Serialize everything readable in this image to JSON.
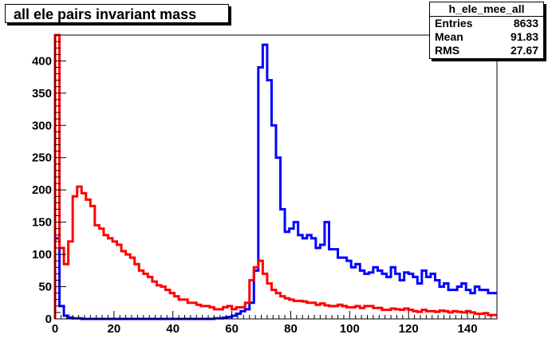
{
  "title": "all ele pairs invariant mass",
  "stats": {
    "name": "h_ele_mee_all",
    "rows": [
      {
        "label": "Entries",
        "value": "8633"
      },
      {
        "label": "Mean",
        "value": "91.83"
      },
      {
        "label": "RMS",
        "value": "27.67"
      }
    ]
  },
  "chart_data": {
    "type": "line",
    "title": "all ele pairs invariant mass",
    "xlabel": "",
    "ylabel": "",
    "xlim": [
      0,
      150
    ],
    "ylim": [
      0,
      440
    ],
    "xticks": [
      0,
      20,
      40,
      60,
      80,
      100,
      120,
      140
    ],
    "yticks": [
      0,
      50,
      100,
      150,
      200,
      250,
      300,
      350,
      400
    ],
    "grid": false,
    "bin_width": 1.5,
    "series": [
      {
        "color": "#0000ff",
        "values": [
          125,
          20,
          5,
          2,
          1,
          1,
          0,
          0,
          0,
          0,
          0,
          0,
          0,
          0,
          0,
          0,
          0,
          0,
          0,
          0,
          0,
          0,
          0,
          0,
          0,
          0,
          0,
          0,
          0,
          0,
          0,
          0,
          0,
          0,
          0,
          0,
          1,
          1,
          2,
          3,
          5,
          8,
          12,
          15,
          25,
          75,
          390,
          425,
          370,
          300,
          250,
          170,
          135,
          140,
          150,
          130,
          125,
          130,
          125,
          110,
          115,
          150,
          108,
          108,
          95,
          95,
          90,
          80,
          85,
          75,
          70,
          72,
          80,
          75,
          70,
          65,
          80,
          70,
          60,
          72,
          70,
          65,
          55,
          75,
          65,
          70,
          60,
          50,
          55,
          45,
          45,
          50,
          55,
          45,
          40,
          50,
          45,
          45,
          40,
          40
        ]
      },
      {
        "color": "#ff0000",
        "values": [
          440,
          110,
          85,
          120,
          190,
          205,
          195,
          185,
          175,
          145,
          140,
          130,
          125,
          120,
          115,
          105,
          100,
          95,
          85,
          75,
          70,
          65,
          58,
          52,
          50,
          45,
          40,
          35,
          30,
          30,
          25,
          25,
          22,
          20,
          20,
          18,
          15,
          15,
          18,
          20,
          15,
          18,
          18,
          25,
          60,
          80,
          90,
          70,
          55,
          45,
          40,
          35,
          32,
          30,
          28,
          28,
          27,
          25,
          25,
          22,
          24,
          21,
          20,
          20,
          22,
          20,
          18,
          18,
          20,
          17,
          20,
          20,
          17,
          17,
          14,
          14,
          16,
          15,
          14,
          16,
          14,
          12,
          11,
          14,
          12,
          12,
          11,
          13,
          12,
          10,
          12,
          11,
          10,
          12,
          10,
          8,
          8,
          9,
          6,
          6
        ]
      }
    ]
  }
}
